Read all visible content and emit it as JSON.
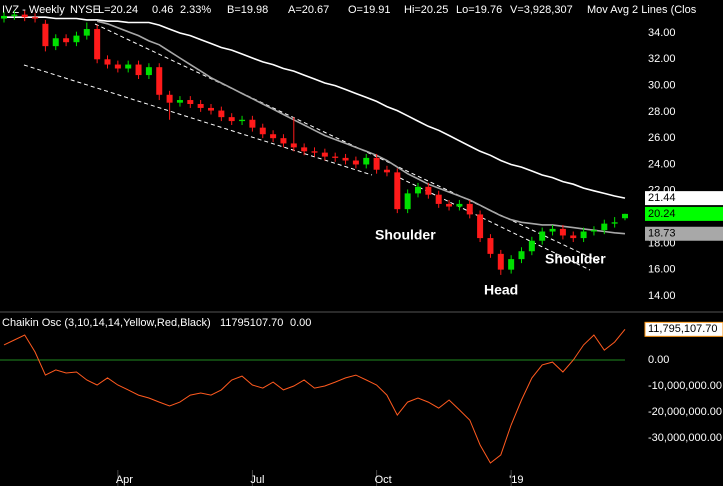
{
  "chart_data": [
    {
      "type": "candlestick",
      "header": [
        "IVZ - Weekly",
        "NYSE",
        "L=20.24",
        "0.46",
        "2.33%",
        "B=19.98",
        "A=20.67",
        "O=19.91",
        "Hi=20.25",
        "Lo=19.76",
        "V=3,928,307",
        "Mov Avg 2 Lines (Clos"
      ],
      "categories": [
        null,
        null,
        null,
        null,
        null,
        null,
        null,
        null,
        null,
        null,
        null,
        "Apr",
        null,
        null,
        null,
        null,
        null,
        null,
        null,
        null,
        null,
        null,
        null,
        null,
        "Jul",
        null,
        null,
        null,
        null,
        null,
        null,
        null,
        null,
        null,
        null,
        null,
        "Oct",
        null,
        null,
        null,
        null,
        null,
        null,
        null,
        null,
        null,
        null,
        null,
        null,
        "'19",
        null,
        null,
        null,
        null,
        null,
        null,
        null,
        null,
        null,
        null,
        null
      ],
      "open": [
        35.1,
        35.3,
        35.4,
        35.2,
        34.7,
        33.0,
        33.6,
        33.3,
        33.8,
        34.3,
        32.0,
        31.6,
        31.3,
        31.6,
        30.8,
        31.4,
        29.3,
        28.7,
        28.9,
        28.6,
        28.3,
        28.1,
        27.6,
        27.3,
        27.4,
        26.8,
        26.3,
        26.0,
        25.6,
        25.3,
        25.0,
        24.9,
        24.6,
        24.5,
        24.3,
        24.0,
        24.5,
        23.6,
        23.4,
        20.6,
        21.8,
        22.3,
        21.7,
        21.0,
        20.8,
        21.0,
        20.2,
        18.4,
        17.2,
        16.0,
        16.8,
        17.4,
        18.2,
        18.9,
        19.1,
        18.6,
        18.4,
        18.9,
        19.0,
        19.5,
        19.91
      ],
      "high": [
        35.6,
        35.7,
        35.7,
        35.5,
        35.0,
        33.9,
        33.9,
        34.1,
        34.8,
        34.6,
        32.3,
        31.9,
        31.9,
        31.9,
        31.7,
        31.7,
        29.6,
        29.2,
        29.2,
        28.9,
        28.6,
        28.4,
        27.9,
        27.7,
        27.7,
        27.1,
        26.6,
        26.3,
        27.6,
        25.6,
        25.3,
        25.2,
        24.9,
        24.8,
        24.6,
        24.8,
        24.8,
        23.9,
        23.7,
        22.1,
        22.6,
        22.6,
        22.0,
        21.3,
        21.3,
        21.3,
        20.5,
        18.7,
        17.5,
        17.1,
        17.7,
        18.5,
        19.2,
        19.4,
        19.4,
        18.9,
        19.2,
        19.3,
        19.8,
        20.0,
        20.25
      ],
      "low": [
        34.8,
        35.0,
        34.9,
        34.8,
        32.6,
        32.7,
        33.0,
        33.0,
        33.5,
        31.7,
        31.3,
        31.0,
        31.0,
        30.5,
        30.5,
        28.9,
        27.4,
        28.4,
        28.3,
        28.0,
        27.8,
        27.3,
        27.0,
        27.0,
        26.5,
        26.0,
        25.7,
        25.3,
        25.0,
        24.7,
        24.6,
        24.3,
        24.2,
        24.0,
        23.7,
        23.7,
        23.3,
        23.1,
        20.3,
        20.3,
        21.5,
        21.4,
        20.7,
        20.5,
        20.5,
        19.9,
        18.1,
        16.9,
        15.6,
        15.7,
        16.5,
        17.1,
        17.9,
        18.6,
        18.3,
        18.1,
        18.1,
        18.6,
        18.7,
        19.2,
        19.76
      ],
      "close": [
        35.3,
        35.4,
        35.2,
        35.1,
        33.0,
        33.6,
        33.3,
        33.8,
        34.3,
        32.0,
        31.6,
        31.3,
        31.6,
        30.8,
        31.4,
        29.3,
        28.7,
        28.9,
        28.6,
        28.3,
        28.1,
        27.6,
        27.3,
        27.4,
        26.8,
        26.3,
        26.0,
        25.6,
        25.3,
        25.0,
        24.9,
        24.6,
        24.5,
        24.3,
        24.0,
        24.5,
        23.6,
        23.4,
        20.6,
        21.8,
        22.3,
        21.7,
        21.0,
        20.8,
        21.0,
        20.2,
        18.4,
        17.2,
        16.0,
        16.8,
        17.4,
        18.2,
        18.9,
        19.1,
        18.6,
        18.4,
        18.9,
        19.0,
        19.5,
        19.6,
        20.24
      ],
      "up_color": "#00e000",
      "down_color": "#ff1a1a",
      "series": [
        {
          "color": "#ffffff",
          "values": [
            35.2,
            35.2,
            35.2,
            35.2,
            35.2,
            35.1,
            35.1,
            35.1,
            35.0,
            35.0,
            34.9,
            34.9,
            34.8,
            34.8,
            34.8,
            34.6,
            34.3,
            34.0,
            33.8,
            33.5,
            33.2,
            32.9,
            32.7,
            32.4,
            32.1,
            31.8,
            31.6,
            31.3,
            31.1,
            30.8,
            30.5,
            30.2,
            30.0,
            29.7,
            29.4,
            29.1,
            28.8,
            28.4,
            28.1,
            27.7,
            27.3,
            26.9,
            26.6,
            26.2,
            25.8,
            25.4,
            25.0,
            24.7,
            24.3,
            24.0,
            23.8,
            23.5,
            23.2,
            23.0,
            22.7,
            22.5,
            22.2,
            22.0,
            21.8,
            21.6,
            21.44
          ]
        },
        {
          "color": "#a8a8a8",
          "values": [
            null,
            null,
            null,
            null,
            null,
            null,
            null,
            null,
            null,
            34.9,
            34.7,
            34.4,
            34.1,
            33.8,
            33.4,
            33.1,
            32.6,
            32.1,
            31.6,
            31.1,
            30.6,
            30.2,
            29.8,
            29.4,
            29.0,
            28.6,
            28.2,
            27.8,
            27.4,
            27.0,
            26.6,
            26.2,
            25.9,
            25.6,
            25.3,
            25.0,
            24.7,
            24.3,
            23.8,
            23.3,
            22.9,
            22.5,
            22.2,
            21.9,
            21.6,
            21.3,
            20.9,
            20.5,
            20.1,
            19.8,
            19.6,
            19.5,
            19.4,
            19.4,
            19.3,
            19.2,
            19.1,
            19.0,
            18.9,
            18.8,
            18.73
          ]
        }
      ],
      "close_tag_color": "#00ff00",
      "annotations": [
        "Shoulder",
        "Head",
        "Shoulder"
      ],
      "ylim": [
        12.93,
        36.51
      ],
      "yticks": [
        {
          "value": 34,
          "label": "34.00"
        },
        {
          "value": 32,
          "label": "32.00"
        },
        {
          "value": 30,
          "label": "30.00"
        },
        {
          "value": 28,
          "label": "28.00"
        },
        {
          "value": 26,
          "label": "26.00"
        },
        {
          "value": 24,
          "label": "24.00"
        },
        {
          "value": 22,
          "label": "22.00"
        },
        {
          "value": 20,
          "label": "20.00"
        },
        {
          "value": 18,
          "label": "18.00"
        },
        {
          "value": 16,
          "label": "16.00"
        },
        {
          "value": 14,
          "label": "14.00"
        }
      ]
    },
    {
      "type": "line",
      "title": "Chaikin Osc (3,10,14,14,Yellow,Red,Black)",
      "readout": [
        "11795107.70",
        "0.00"
      ],
      "color": "#ff5a1f",
      "zero_color": "#1f8a1f",
      "values": [
        5800000,
        7700000,
        9600000,
        3100000,
        -5800000,
        -3800000,
        -5000000,
        -4600000,
        -7700000,
        -9600000,
        -6900000,
        -9600000,
        -11500000,
        -13500000,
        -14600000,
        -16200000,
        -17700000,
        -16200000,
        -13500000,
        -12700000,
        -13500000,
        -11500000,
        -7700000,
        -6200000,
        -9600000,
        -10800000,
        -8500000,
        -11500000,
        -10000000,
        -7700000,
        -10800000,
        -10000000,
        -8500000,
        -6900000,
        -5800000,
        -7700000,
        -9600000,
        -13500000,
        -21200000,
        -16200000,
        -14600000,
        -16200000,
        -18500000,
        -15400000,
        -19200000,
        -23100000,
        -32700000,
        -39600000,
        -36500000,
        -25000000,
        -15400000,
        -6900000,
        -1900000,
        -800000,
        -4600000,
        0,
        5800000,
        9600000,
        3800000,
        6900000,
        11795107.7
      ],
      "last_label": "11,795,107.70",
      "ylim": [
        -48460000,
        17690000
      ],
      "yticks": [
        {
          "value": 0,
          "label": "0.00"
        },
        {
          "value": -10000000,
          "label": "-10,000,000.00"
        },
        {
          "value": -20000000,
          "label": "-20,000,000.00"
        },
        {
          "value": -30000000,
          "label": "-30,000,000.00"
        }
      ]
    }
  ]
}
